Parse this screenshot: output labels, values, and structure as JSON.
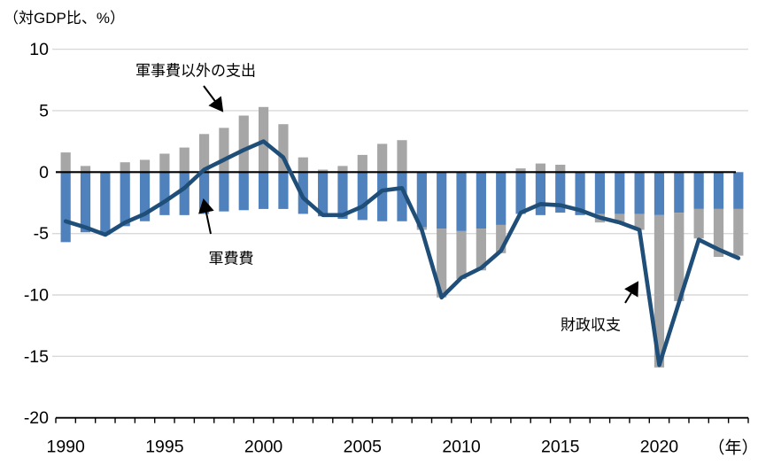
{
  "chart": {
    "title": "（対GDP比、%）",
    "x_axis_unit": "（年）",
    "annotations": {
      "nonmilitary": "軍事費以外の支出",
      "military": "軍費費",
      "balance": "財政収支"
    }
  },
  "colors": {
    "military_bar": "#4f81bd",
    "nonmilitary_bar": "#a6a6a6",
    "balance_line": "#1f4e79",
    "gridline": "#d9d9d9",
    "axis": "#000000"
  },
  "chart_data": {
    "type": "bar",
    "subtype": "stacked-bars-with-line",
    "title": "（対GDP比、%）",
    "xlabel": "（年）",
    "ylabel": "対GDP比（%）",
    "ylim": [
      -20,
      10
    ],
    "y_ticks": [
      10,
      5,
      0,
      -5,
      -10,
      -15,
      -20
    ],
    "x_tick_labels": [
      "1990",
      "1995",
      "2000",
      "2005",
      "2010",
      "2015",
      "2020"
    ],
    "x_tick_years": [
      1990,
      1995,
      2000,
      2005,
      2010,
      2015,
      2020
    ],
    "grid": "horizontal",
    "legend_position": "none (in-plot annotations with arrows)",
    "x": [
      1990,
      1991,
      1992,
      1993,
      1994,
      1995,
      1996,
      1997,
      1998,
      1999,
      2000,
      2001,
      2002,
      2003,
      2004,
      2005,
      2006,
      2007,
      2008,
      2009,
      2010,
      2011,
      2012,
      2013,
      2014,
      2015,
      2016,
      2017,
      2018,
      2019,
      2020,
      2021,
      2022,
      2023,
      2024
    ],
    "series": [
      {
        "name": "軍費費",
        "type": "bar",
        "color": "#4f81bd",
        "values": [
          -5.7,
          -4.9,
          -5.1,
          -4.4,
          -4.0,
          -3.5,
          -3.5,
          -3.4,
          -3.2,
          -3.1,
          -3.0,
          -3.0,
          -3.4,
          -3.6,
          -3.8,
          -3.9,
          -4.0,
          -4.0,
          -4.5,
          -4.6,
          -4.8,
          -4.6,
          -4.3,
          -3.4,
          -3.5,
          -3.3,
          -3.5,
          -3.4,
          -3.4,
          -3.4,
          -3.5,
          -3.3,
          -3.0,
          -3.0,
          -3.0
        ]
      },
      {
        "name": "軍事費以外の支出",
        "type": "bar",
        "color": "#a6a6a6",
        "values": [
          1.6,
          0.5,
          0.0,
          0.8,
          1.0,
          1.5,
          2.0,
          3.1,
          3.6,
          4.6,
          5.3,
          3.9,
          1.2,
          0.2,
          0.5,
          1.4,
          2.3,
          2.6,
          -0.2,
          -5.6,
          -3.9,
          -3.4,
          -2.3,
          0.3,
          0.7,
          0.6,
          0.0,
          -0.7,
          -0.8,
          -1.3,
          -12.4,
          -7.2,
          -2.4,
          -3.9,
          -3.8
        ]
      },
      {
        "name": "財政収支",
        "type": "line",
        "color": "#1f4e79",
        "values": [
          -4.0,
          -4.5,
          -5.1,
          -4.1,
          -3.4,
          -2.4,
          -1.3,
          0.2,
          1.0,
          1.8,
          2.5,
          1.2,
          -2.1,
          -3.5,
          -3.5,
          -2.8,
          -1.5,
          -1.3,
          -4.7,
          -10.2,
          -8.6,
          -7.8,
          -6.4,
          -3.3,
          -2.6,
          -2.7,
          -3.1,
          -3.7,
          -4.1,
          -4.7,
          -15.7,
          -10.6,
          -5.5,
          -6.3,
          -7.0
        ]
      }
    ],
    "stacking_note": "Gray bar stacks above zero when positive; when negative it stacks below the blue bar. Line equals approximate sum of the two bars (fiscal balance)."
  }
}
